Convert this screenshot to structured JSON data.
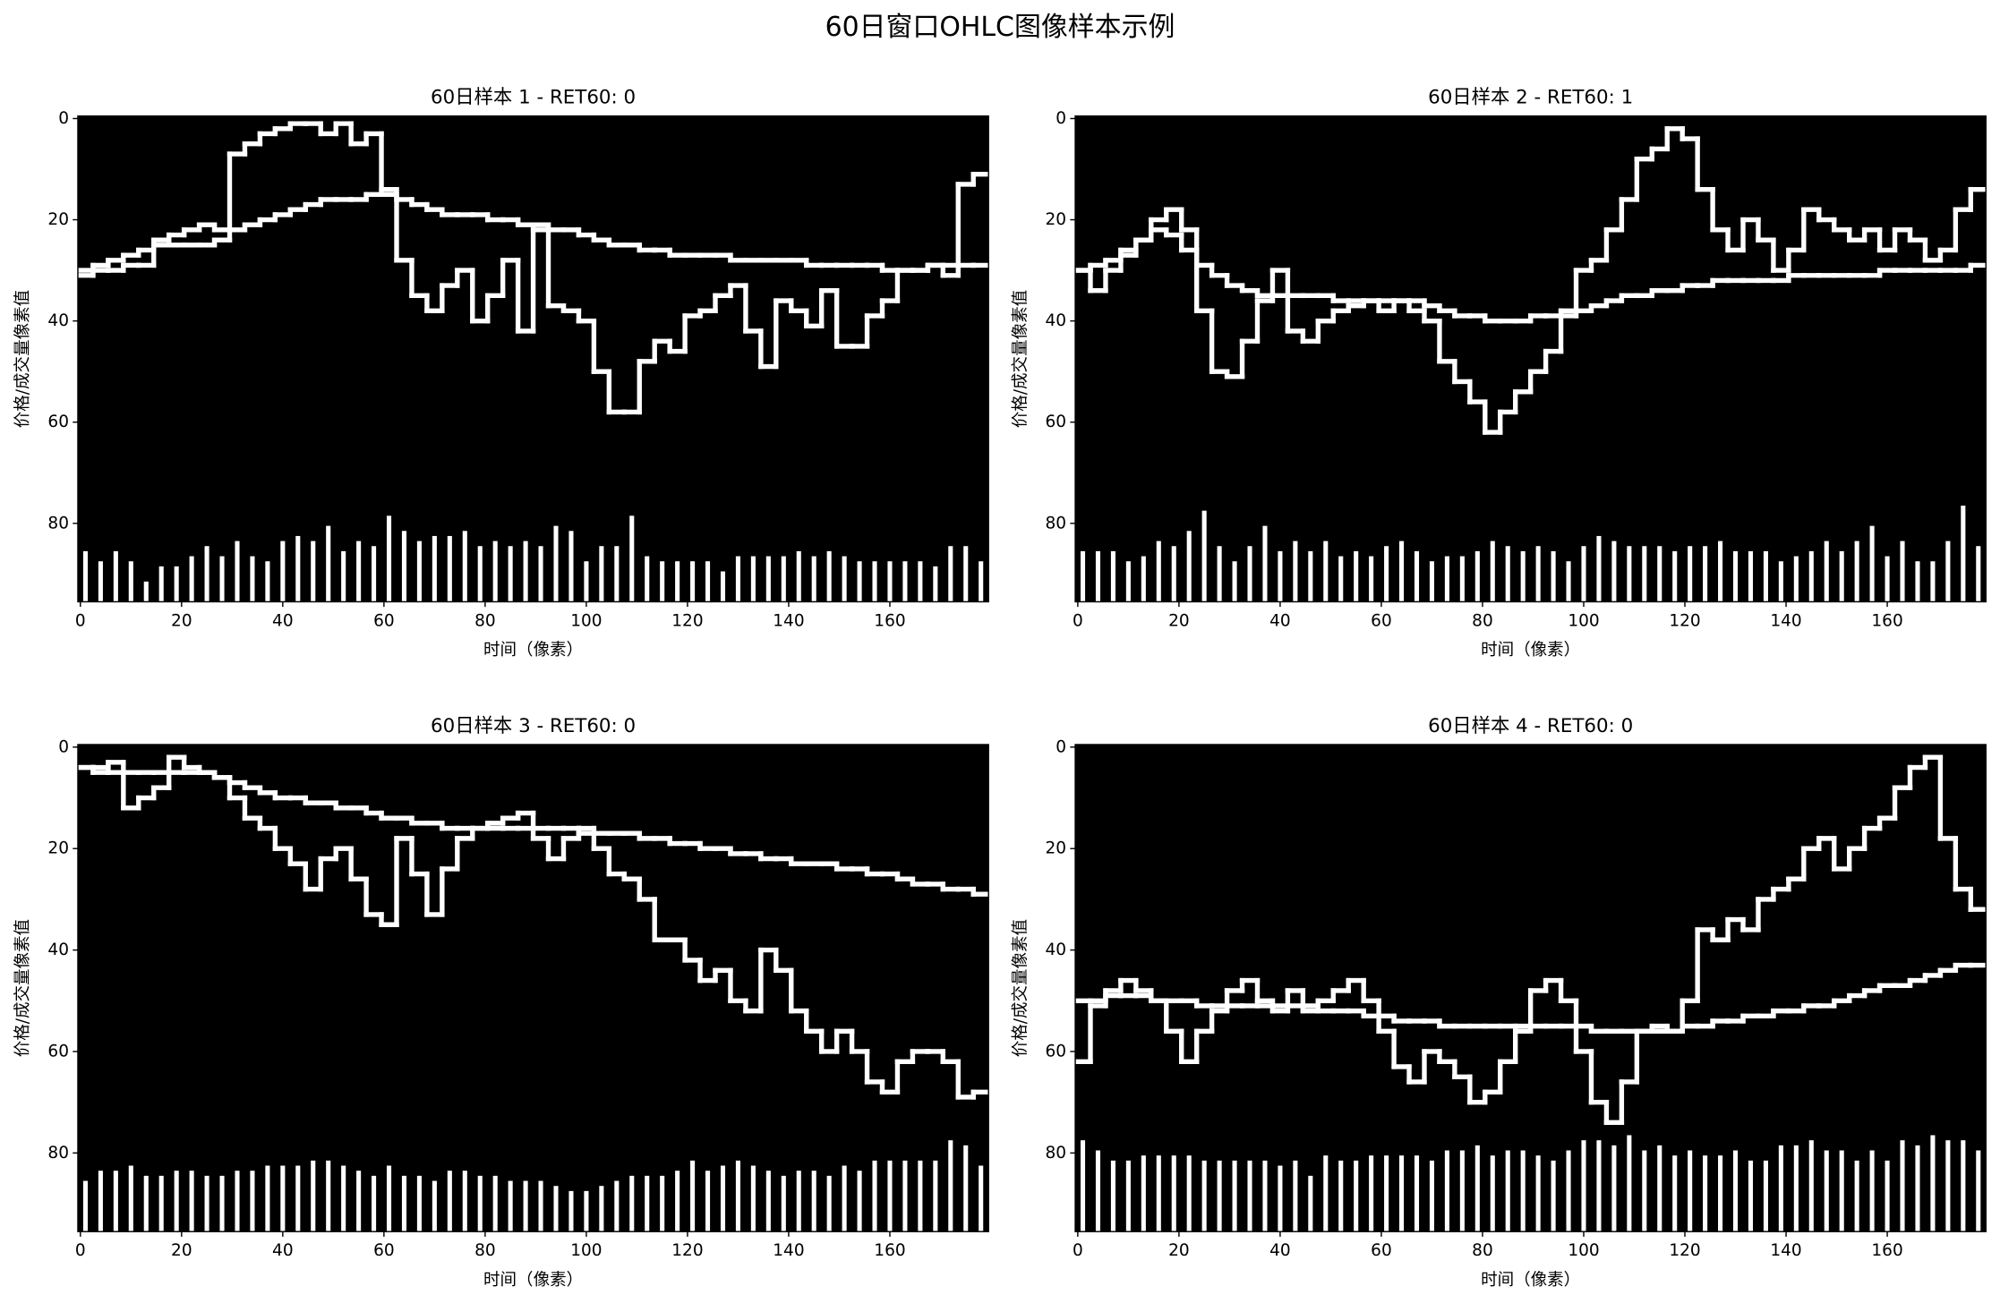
{
  "title": "60日窗口OHLC图像样本示例",
  "chart_data": [
    {
      "type": "image",
      "title": "60日样本 1 - RET60: 0",
      "xlabel": "时间（像素）",
      "ylabel": "价格/成交量像素值",
      "xlim": [
        -0.5,
        179.5
      ],
      "ylim": [
        95.5,
        -0.5
      ],
      "xticks": [
        0,
        20,
        40,
        60,
        80,
        100,
        120,
        140,
        160
      ],
      "yticks": [
        0,
        20,
        40,
        60,
        80
      ],
      "color": "#ffffff",
      "background": "#000000",
      "price": [
        31,
        30,
        30,
        29,
        29,
        24,
        23,
        22,
        21,
        22,
        7,
        5,
        3,
        2,
        1,
        1,
        3,
        1,
        5,
        3,
        14,
        28,
        35,
        38,
        33,
        30,
        40,
        35,
        28,
        42,
        22,
        37,
        38,
        40,
        50,
        58,
        58,
        48,
        44,
        46,
        39,
        38,
        35,
        33,
        42,
        49,
        36,
        38,
        41,
        34,
        45,
        45,
        39,
        36,
        30,
        30,
        29,
        31,
        13,
        11
      ],
      "moving_average": [
        30,
        29,
        28,
        27,
        26,
        25,
        25,
        25,
        25,
        24,
        22,
        21,
        20,
        19,
        18,
        17,
        16,
        16,
        16,
        15,
        15,
        16,
        17,
        18,
        19,
        19,
        19,
        20,
        20,
        21,
        21,
        22,
        22,
        23,
        24,
        25,
        25,
        26,
        26,
        27,
        27,
        27,
        27,
        28,
        28,
        28,
        28,
        28,
        29,
        29,
        29,
        29,
        29,
        30,
        30,
        30,
        29,
        29,
        29,
        29
      ],
      "volume": [
        86,
        88,
        86,
        88,
        92,
        89,
        89,
        87,
        85,
        87,
        84,
        87,
        88,
        84,
        83,
        84,
        81,
        86,
        84,
        85,
        79,
        82,
        84,
        83,
        83,
        82,
        85,
        84,
        85,
        84,
        85,
        81,
        82,
        88,
        85,
        85,
        79,
        87,
        88,
        88,
        88,
        88,
        90,
        87,
        87,
        87,
        87,
        86,
        87,
        86,
        87,
        88,
        88,
        88,
        88,
        88,
        89,
        85,
        85,
        88
      ]
    },
    {
      "type": "image",
      "title": "60日样本 2 - RET60: 1",
      "xlabel": "时间（像素）",
      "ylabel": "价格/成交量像素值",
      "xlim": [
        -0.5,
        179.5
      ],
      "ylim": [
        95.5,
        -0.5
      ],
      "xticks": [
        0,
        20,
        40,
        60,
        80,
        100,
        120,
        140,
        160
      ],
      "yticks": [
        0,
        20,
        40,
        60,
        80
      ],
      "color": "#ffffff",
      "background": "#000000",
      "price": [
        30,
        34,
        30,
        27,
        24,
        20,
        18,
        22,
        38,
        50,
        51,
        44,
        36,
        30,
        42,
        44,
        40,
        38,
        37,
        36,
        38,
        36,
        38,
        40,
        48,
        52,
        56,
        62,
        58,
        54,
        50,
        46,
        38,
        30,
        28,
        22,
        16,
        8,
        6,
        2,
        4,
        14,
        22,
        26,
        20,
        24,
        30,
        26,
        18,
        20,
        22,
        24,
        22,
        26,
        22,
        24,
        28,
        26,
        18,
        14
      ],
      "moving_average": [
        30,
        29,
        28,
        26,
        24,
        22,
        23,
        26,
        29,
        31,
        33,
        34,
        35,
        35,
        35,
        35,
        35,
        36,
        36,
        36,
        36,
        36,
        36,
        37,
        38,
        39,
        39,
        40,
        40,
        40,
        39,
        39,
        39,
        38,
        37,
        36,
        35,
        35,
        34,
        34,
        33,
        33,
        32,
        32,
        32,
        32,
        32,
        31,
        31,
        31,
        31,
        31,
        31,
        30,
        30,
        30,
        30,
        30,
        30,
        29
      ],
      "volume": [
        86,
        86,
        86,
        88,
        87,
        84,
        85,
        82,
        78,
        85,
        88,
        85,
        81,
        86,
        84,
        86,
        84,
        87,
        86,
        87,
        85,
        84,
        86,
        88,
        87,
        87,
        86,
        84,
        85,
        86,
        85,
        86,
        88,
        85,
        83,
        84,
        85,
        85,
        85,
        86,
        85,
        85,
        84,
        86,
        86,
        86,
        88,
        87,
        86,
        84,
        86,
        84,
        81,
        87,
        84,
        88,
        88,
        84,
        77,
        85
      ]
    },
    {
      "type": "image",
      "title": "60日样本 3 - RET60: 0",
      "xlabel": "时间（像素）",
      "ylabel": "价格/成交量像素值",
      "xlim": [
        -0.5,
        179.5
      ],
      "ylim": [
        95.5,
        -0.5
      ],
      "xticks": [
        0,
        20,
        40,
        60,
        80,
        100,
        120,
        140,
        160
      ],
      "yticks": [
        0,
        20,
        40,
        60,
        80
      ],
      "color": "#ffffff",
      "background": "#000000",
      "price": [
        4,
        5,
        3,
        12,
        10,
        8,
        2,
        4,
        5,
        6,
        10,
        14,
        16,
        20,
        23,
        28,
        22,
        20,
        26,
        33,
        35,
        18,
        25,
        33,
        24,
        18,
        16,
        15,
        14,
        13,
        18,
        22,
        18,
        16,
        20,
        25,
        26,
        30,
        38,
        38,
        42,
        46,
        44,
        50,
        52,
        40,
        44,
        52,
        56,
        60,
        56,
        60,
        66,
        68,
        62,
        60,
        60,
        62,
        69,
        68
      ],
      "moving_average": [
        4,
        4,
        5,
        5,
        5,
        5,
        5,
        5,
        5,
        6,
        7,
        8,
        9,
        10,
        10,
        11,
        11,
        12,
        12,
        13,
        14,
        14,
        15,
        15,
        16,
        16,
        16,
        16,
        16,
        16,
        16,
        16,
        16,
        17,
        17,
        17,
        17,
        18,
        18,
        19,
        19,
        20,
        20,
        21,
        21,
        22,
        22,
        23,
        23,
        23,
        24,
        24,
        25,
        25,
        26,
        27,
        27,
        28,
        28,
        29
      ],
      "volume": [
        86,
        84,
        84,
        83,
        85,
        85,
        84,
        84,
        85,
        85,
        84,
        84,
        83,
        83,
        83,
        82,
        82,
        83,
        84,
        85,
        83,
        85,
        85,
        86,
        84,
        84,
        85,
        85,
        86,
        86,
        86,
        87,
        88,
        88,
        87,
        86,
        85,
        85,
        85,
        84,
        82,
        84,
        83,
        82,
        83,
        84,
        85,
        84,
        84,
        85,
        83,
        84,
        82,
        82,
        82,
        82,
        82,
        78,
        79,
        83
      ]
    },
    {
      "type": "image",
      "title": "60日样本 4 - RET60: 0",
      "xlabel": "时间（像素）",
      "ylabel": "价格/成交量像素值",
      "xlim": [
        -0.5,
        179.5
      ],
      "ylim": [
        95.5,
        -0.5
      ],
      "xticks": [
        0,
        20,
        40,
        60,
        80,
        100,
        120,
        140,
        160
      ],
      "yticks": [
        0,
        20,
        40,
        60,
        80
      ],
      "color": "#ffffff",
      "background": "#000000",
      "price": [
        62,
        51,
        48,
        46,
        48,
        50,
        56,
        62,
        56,
        52,
        48,
        46,
        50,
        52,
        48,
        52,
        50,
        48,
        46,
        50,
        56,
        63,
        66,
        60,
        62,
        65,
        70,
        68,
        62,
        56,
        48,
        46,
        50,
        60,
        70,
        74,
        66,
        56,
        55,
        56,
        50,
        36,
        38,
        34,
        36,
        30,
        28,
        26,
        20,
        18,
        24,
        20,
        16,
        14,
        8,
        4,
        2,
        18,
        28,
        32
      ],
      "moving_average": [
        50,
        50,
        49,
        49,
        49,
        50,
        50,
        50,
        51,
        51,
        51,
        51,
        51,
        51,
        51,
        51,
        52,
        52,
        52,
        53,
        53,
        54,
        54,
        54,
        55,
        55,
        55,
        55,
        55,
        55,
        55,
        55,
        55,
        55,
        56,
        56,
        56,
        56,
        56,
        56,
        55,
        55,
        54,
        54,
        53,
        53,
        52,
        52,
        51,
        51,
        50,
        49,
        48,
        47,
        47,
        46,
        45,
        44,
        43,
        43
      ],
      "volume": [
        78,
        80,
        82,
        82,
        81,
        81,
        81,
        81,
        82,
        82,
        82,
        82,
        82,
        83,
        82,
        85,
        81,
        82,
        82,
        81,
        81,
        81,
        81,
        82,
        80,
        80,
        79,
        81,
        80,
        80,
        81,
        82,
        80,
        78,
        78,
        79,
        77,
        80,
        79,
        81,
        80,
        81,
        81,
        80,
        82,
        82,
        79,
        79,
        78,
        80,
        80,
        82,
        80,
        82,
        78,
        79,
        77,
        78,
        78,
        80
      ]
    }
  ]
}
